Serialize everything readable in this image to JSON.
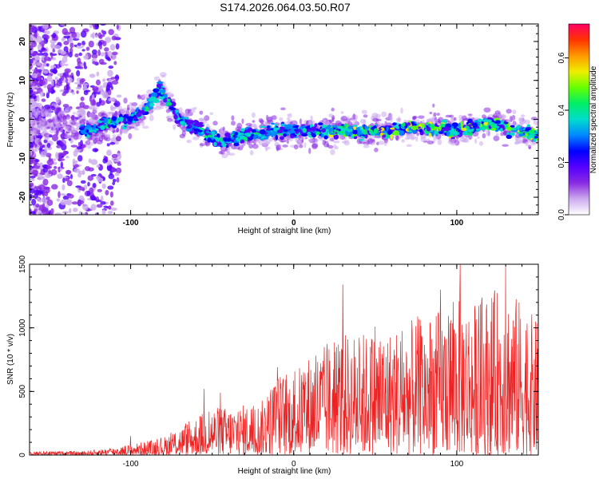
{
  "title": "S174.2026.064.03.50.R07",
  "chart_data": [
    {
      "type": "heatmap",
      "title": "S174.2026.064.03.50.R07",
      "xlabel": "Height of straight line (km)",
      "ylabel": "Frequency (Hz)",
      "xlim": [
        -162,
        150
      ],
      "ylim": [
        -24.5,
        24.5
      ],
      "x_ticks": [
        -100,
        0,
        100
      ],
      "y_ticks": [
        -20,
        -10,
        0,
        10,
        20
      ],
      "colorbar": {
        "label": "Normalized spectral amplitude",
        "range": [
          0.0,
          0.73
        ],
        "ticks": [
          0.0,
          0.2,
          0.4,
          0.6
        ],
        "tick_labels": [
          "0.0",
          "0.2",
          "0.4",
          "0.6"
        ],
        "colors": [
          "#ffffff",
          "#ccaaee",
          "#8a2be2",
          "#5500ff",
          "#0000ff",
          "#0088ff",
          "#00ddcc",
          "#00ee66",
          "#66ff00",
          "#eeee00",
          "#ff9900",
          "#ff3300",
          "#ff0066"
        ]
      },
      "ridge": [
        {
          "x": -162,
          "y": 0.0
        },
        {
          "x": -140,
          "y": -1.0
        },
        {
          "x": -125,
          "y": -3.0
        },
        {
          "x": -115,
          "y": -1.0
        },
        {
          "x": -100,
          "y": 0.0
        },
        {
          "x": -90,
          "y": 3.0
        },
        {
          "x": -82,
          "y": 8.0
        },
        {
          "x": -78,
          "y": 5.0
        },
        {
          "x": -70,
          "y": 0.0
        },
        {
          "x": -60,
          "y": -2.0
        },
        {
          "x": -45,
          "y": -6.0
        },
        {
          "x": -30,
          "y": -4.0
        },
        {
          "x": -10,
          "y": -3.0
        },
        {
          "x": 0,
          "y": -3.0
        },
        {
          "x": 20,
          "y": -3.0
        },
        {
          "x": 50,
          "y": -3.0
        },
        {
          "x": 80,
          "y": -2.0
        },
        {
          "x": 100,
          "y": -3.0
        },
        {
          "x": 120,
          "y": -1.0
        },
        {
          "x": 140,
          "y": -3.0
        },
        {
          "x": 150,
          "y": -4.0
        }
      ]
    },
    {
      "type": "line",
      "xlabel": "Height of straight line (km)",
      "ylabel": "SNR (10 * v/v)",
      "xlim": [
        -162,
        150
      ],
      "ylim": [
        0,
        1500
      ],
      "x_ticks": [
        -100,
        0,
        100
      ],
      "y_ticks": [
        0,
        500,
        1000,
        1500
      ],
      "line_color": "#ee2222",
      "envelope": [
        {
          "x": -162,
          "y": 30
        },
        {
          "x": -130,
          "y": 30
        },
        {
          "x": -110,
          "y": 60
        },
        {
          "x": -90,
          "y": 110
        },
        {
          "x": -80,
          "y": 140
        },
        {
          "x": -70,
          "y": 220
        },
        {
          "x": -60,
          "y": 300
        },
        {
          "x": -50,
          "y": 380
        },
        {
          "x": -40,
          "y": 380
        },
        {
          "x": -20,
          "y": 420
        },
        {
          "x": -10,
          "y": 650
        },
        {
          "x": 0,
          "y": 650
        },
        {
          "x": 10,
          "y": 800
        },
        {
          "x": 30,
          "y": 950
        },
        {
          "x": 60,
          "y": 1000
        },
        {
          "x": 90,
          "y": 1150
        },
        {
          "x": 100,
          "y": 1300
        },
        {
          "x": 110,
          "y": 1200
        },
        {
          "x": 130,
          "y": 1350
        },
        {
          "x": 150,
          "y": 1050
        }
      ],
      "spikes": [
        {
          "x": -100,
          "y": 150
        },
        {
          "x": -55,
          "y": 520
        },
        {
          "x": -45,
          "y": 490
        },
        {
          "x": -10,
          "y": 690
        },
        {
          "x": 30,
          "y": 1340
        },
        {
          "x": 50,
          "y": 1010
        },
        {
          "x": 76,
          "y": 1090
        },
        {
          "x": 90,
          "y": 1300
        },
        {
          "x": 102,
          "y": 1500
        },
        {
          "x": 130,
          "y": 1480
        }
      ]
    }
  ]
}
